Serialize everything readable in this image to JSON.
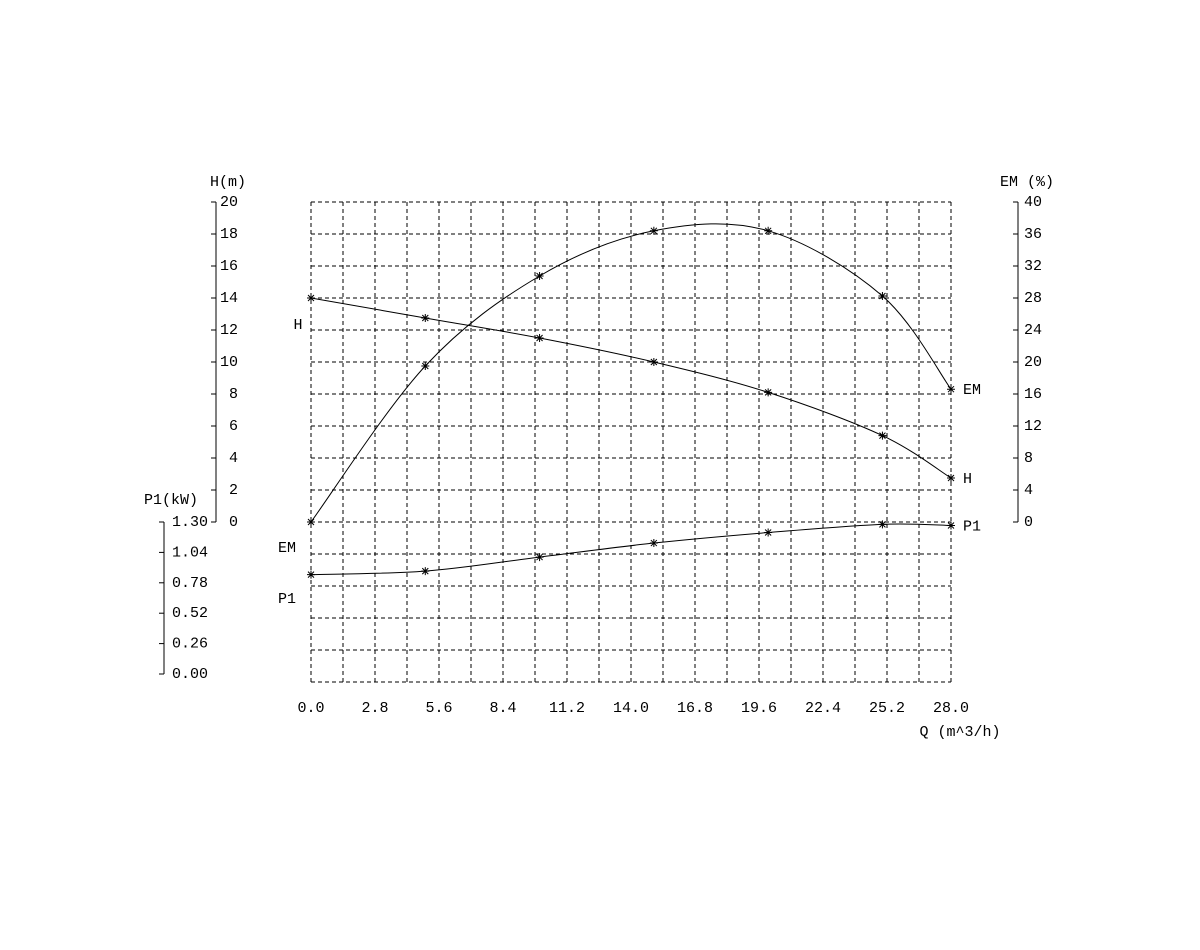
{
  "chart_data": {
    "type": "line",
    "xlabel": "Q (m^3/h)",
    "x": [
      0,
      5,
      10,
      15,
      20,
      25,
      28
    ],
    "xlim": [
      0,
      28
    ],
    "xticks": [
      {
        "value": 0,
        "label": "0.0"
      },
      {
        "value": 2.8,
        "label": "2.8"
      },
      {
        "value": 5.6,
        "label": "5.6"
      },
      {
        "value": 8.4,
        "label": "8.4"
      },
      {
        "value": 11.2,
        "label": "11.2"
      },
      {
        "value": 14,
        "label": "14.0"
      },
      {
        "value": 16.8,
        "label": "16.8"
      },
      {
        "value": 19.6,
        "label": "19.6"
      },
      {
        "value": 22.4,
        "label": "22.4"
      },
      {
        "value": 25.2,
        "label": "25.2"
      },
      {
        "value": 28,
        "label": "28.0"
      }
    ],
    "ylabel": "H(m)",
    "ylim": [
      0,
      20
    ],
    "yticks": [
      0,
      2,
      4,
      6,
      8,
      10,
      12,
      14,
      16,
      18,
      20
    ],
    "y2label": "EM (%)",
    "y2lim": [
      0,
      40
    ],
    "y2ticks": [
      0,
      4,
      8,
      12,
      16,
      20,
      24,
      28,
      32,
      36,
      40
    ],
    "y3label": "P1(kW)",
    "y3lim": [
      0,
      1.3
    ],
    "y3ticks": [
      {
        "value": 1.3,
        "label": "1.30"
      },
      {
        "value": 1.04,
        "label": "1.04"
      },
      {
        "value": 0.78,
        "label": "0.78"
      },
      {
        "value": 0.52,
        "label": "0.52"
      },
      {
        "value": 0.26,
        "label": "0.26"
      },
      {
        "value": 0,
        "label": "0.00"
      }
    ],
    "grid": true,
    "series": [
      {
        "name": "H",
        "color": "#000000",
        "axis": "y",
        "values": [
          14.0,
          12.75,
          11.5,
          10.0,
          8.1,
          5.4,
          2.75
        ]
      },
      {
        "name": "EM",
        "color": "#000000",
        "axis": "y2",
        "values": [
          0,
          19.5,
          30.75,
          36.4,
          36.4,
          28.25,
          16.6
        ]
      },
      {
        "name": "P1",
        "color": "#000000",
        "axis": "y3",
        "values": [
          0.85,
          0.88,
          1.0,
          1.12,
          1.21,
          1.28,
          1.27
        ]
      }
    ]
  }
}
